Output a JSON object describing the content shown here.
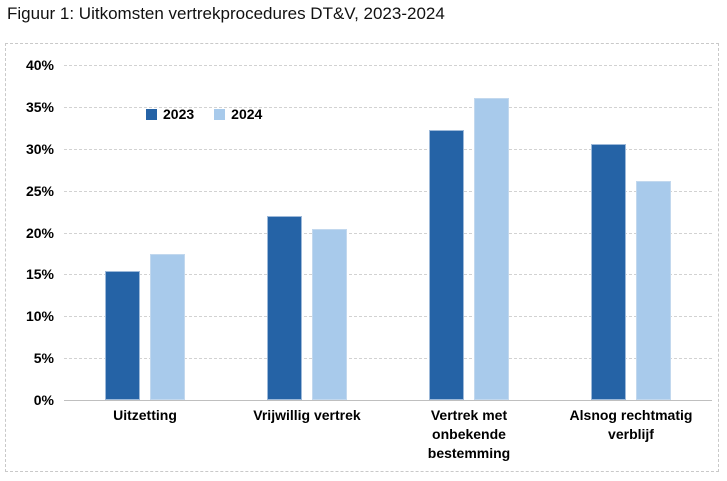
{
  "page": {
    "title": "Figuur 1: Uitkomsten vertrekprocedures DT&V, 2023-2024"
  },
  "chart_data": {
    "type": "bar",
    "title": "Figuur 1: Uitkomsten vertrekprocedures DT&V, 2023-2024",
    "categories": [
      "Uitzetting",
      "Vrijwillig vertrek",
      "Vertrek met onbekende bestemming",
      "Alsnog rechtmatig verblijf"
    ],
    "series": [
      {
        "name": "2023",
        "color": "#2563A6",
        "border_color": "#9db9d9",
        "values": [
          15.4,
          22.0,
          32.2,
          30.6
        ]
      },
      {
        "name": "2024",
        "color": "#A8CAEB",
        "border_color": "#c2d8ee",
        "values": [
          17.4,
          20.4,
          36.1,
          26.1
        ]
      }
    ],
    "xlabel": "",
    "ylabel": "",
    "ylim": [
      0,
      40
    ],
    "ytick_step": 5,
    "yticks": [
      "0%",
      "5%",
      "10%",
      "15%",
      "20%",
      "25%",
      "30%",
      "35%",
      "40%"
    ],
    "grid": true,
    "gridline_color": "#d2d2d2",
    "legend_position": "top-left-inside"
  }
}
